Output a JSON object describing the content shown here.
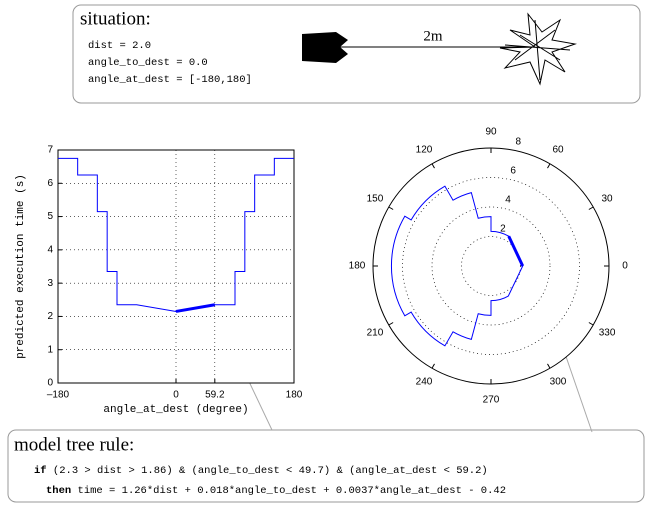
{
  "situation": {
    "title": "situation:",
    "lines": [
      "dist = 2.0",
      "angle_to_dest = 0.0",
      "angle_at_dest = [-180,180]"
    ],
    "distance_label": "2m"
  },
  "chart_data": [
    {
      "type": "line",
      "xlabel": "angle_at_dest (degree)",
      "ylabel": "predicted execution time (s)",
      "xlim": [
        -180,
        180
      ],
      "ylim": [
        0,
        7
      ],
      "xticks": [
        {
          "value": -180,
          "label": "–180"
        },
        0,
        59.2,
        180
      ],
      "yticks": [
        0,
        1,
        2,
        3,
        4,
        5,
        6,
        7
      ],
      "grid": true,
      "series": [
        {
          "color": "#0000ff",
          "line_width": 1,
          "x": [
            -180,
            -150,
            -150,
            -120,
            -120,
            -105,
            -105,
            -90,
            -90,
            -60,
            0,
            59.2,
            90,
            90,
            105,
            105,
            120,
            120,
            150,
            150,
            180
          ],
          "values": [
            6.75,
            6.75,
            6.25,
            6.25,
            5.15,
            5.15,
            3.35,
            3.35,
            2.35,
            2.35,
            2.15,
            2.35,
            2.35,
            3.35,
            3.35,
            5.15,
            5.15,
            6.25,
            6.25,
            6.75,
            6.75
          ]
        },
        {
          "color": "#0000ff",
          "line_width": 3,
          "x": [
            0,
            59.2
          ],
          "values": [
            2.15,
            2.35
          ]
        }
      ]
    },
    {
      "type": "polar",
      "rlim": [
        0,
        8
      ],
      "rticks": [
        2,
        4,
        6,
        8
      ],
      "thetaticks": [
        0,
        30,
        60,
        90,
        120,
        150,
        180,
        210,
        240,
        270,
        300,
        330
      ],
      "grid": true,
      "series": [
        {
          "color": "#0000ff",
          "line_width": 1,
          "theta": [
            -180,
            -150,
            -150,
            -120,
            -120,
            -105,
            -105,
            -90,
            -90,
            -60,
            0,
            59.2,
            90,
            90,
            105,
            105,
            120,
            120,
            150,
            150,
            180
          ],
          "values": [
            6.75,
            6.75,
            6.25,
            6.25,
            5.15,
            5.15,
            3.35,
            3.35,
            2.35,
            2.35,
            2.15,
            2.35,
            2.35,
            3.35,
            3.35,
            5.15,
            5.15,
            6.25,
            6.25,
            6.75,
            6.75
          ]
        },
        {
          "color": "#0000ff",
          "line_width": 3,
          "theta": [
            0,
            59.2
          ],
          "values": [
            2.15,
            2.35
          ]
        }
      ]
    }
  ],
  "rule": {
    "title": "model tree rule:",
    "if_keyword": "if",
    "condition": "(2.3 > dist > 1.86) & (angle_to_dest < 49.7) & (angle_at_dest < 59.2)",
    "then_keyword": "then",
    "action": "time = 1.26*dist + 0.018*angle_to_dest + 0.0037*angle_at_dest - 0.42"
  }
}
